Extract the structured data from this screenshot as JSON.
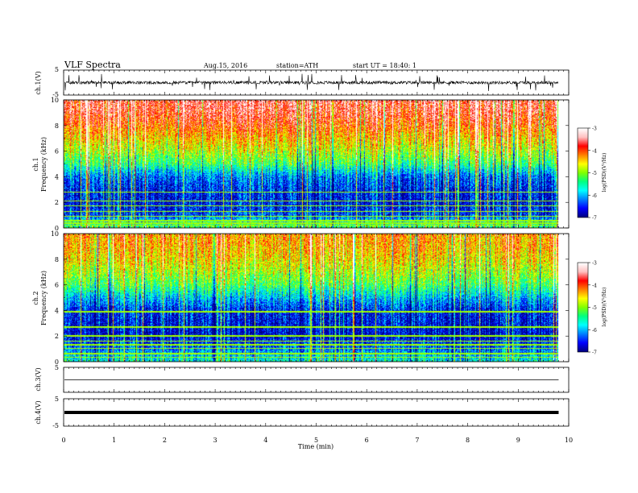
{
  "header": {
    "title": "VLF  Spectra",
    "date": "Aug.15, 2016",
    "station": "station=ATH",
    "start_ut": "start  UT  =    18:40: 1"
  },
  "chart_data": [
    {
      "type": "line",
      "id": "ch1-waveform",
      "ylabel": "ch.1(V)",
      "ylim": [
        -5,
        5
      ],
      "y_ticks": [
        "5",
        "-5"
      ],
      "description_values": {
        "baseline": 0,
        "typical_amplitude": 1,
        "spike_max": 3.5,
        "x_end_min": 9.8
      }
    },
    {
      "type": "heatmap",
      "id": "ch1-spectrogram",
      "ylabel": "ch.1\nFrequency  (kHz)",
      "ylabel_line1": "ch.1",
      "ylabel_line2": "Frequency  (kHz)",
      "ylim": [
        0,
        10
      ],
      "y_ticks": [
        "0",
        "2",
        "4",
        "6",
        "8",
        "10"
      ],
      "xlim": [
        0,
        10
      ],
      "colorbar": {
        "label": "log(PSD)(V²/Hz)",
        "range": [
          -7,
          -3
        ],
        "ticks": [
          "-3",
          "-4",
          "-5",
          "-6",
          "-7"
        ]
      },
      "psd_profile_log": [
        [
          0,
          -5.2
        ],
        [
          1,
          -6.4
        ],
        [
          2,
          -6.6
        ],
        [
          3,
          -6.5
        ],
        [
          4,
          -6.2
        ],
        [
          5,
          -5.3
        ],
        [
          6,
          -4.8
        ],
        [
          7,
          -4.4
        ],
        [
          8,
          -4.0
        ],
        [
          9,
          -3.7
        ],
        [
          10,
          -3.6
        ]
      ],
      "persistent_lines_khz": [
        0.2,
        0.35,
        0.55,
        0.9,
        1.25,
        1.7,
        2.1,
        2.8
      ]
    },
    {
      "type": "heatmap",
      "id": "ch2-spectrogram",
      "ylabel_line1": "ch.2",
      "ylabel_line2": "Frequency  (kHz)",
      "ylim": [
        0,
        10
      ],
      "y_ticks": [
        "0",
        "2",
        "4",
        "6",
        "8",
        "10"
      ],
      "xlim": [
        0,
        10
      ],
      "colorbar": {
        "label": "log(PSD)(V²/Hz)",
        "range": [
          -7,
          -3
        ],
        "ticks": [
          "-3",
          "-4",
          "-5",
          "-6",
          "-7"
        ]
      },
      "psd_profile_log": [
        [
          0,
          -5.6
        ],
        [
          1,
          -6.2
        ],
        [
          2,
          -6.7
        ],
        [
          3,
          -6.6
        ],
        [
          4,
          -6.5
        ],
        [
          5,
          -5.9
        ],
        [
          6,
          -5.2
        ],
        [
          7,
          -4.8
        ],
        [
          8,
          -4.5
        ],
        [
          9,
          -4.3
        ],
        [
          10,
          -4.2
        ]
      ],
      "persistent_lines_khz": [
        0.3,
        0.6,
        1.0,
        1.3,
        1.6,
        2.0,
        2.7,
        3.9
      ]
    },
    {
      "type": "line",
      "id": "ch3-waveform",
      "ylabel": "ch.3(V)",
      "ylim": [
        -5,
        5
      ],
      "y_ticks": [
        "5"
      ],
      "description_values": {
        "baseline": 0
      }
    },
    {
      "type": "line",
      "id": "ch4-waveform",
      "ylabel": "ch.4(V)",
      "ylim": [
        -5,
        5
      ],
      "y_ticks": [
        "5",
        "-5"
      ],
      "description_values": {
        "baseline": 0
      }
    }
  ],
  "xaxis": {
    "label": "Time  (min)",
    "xlim": [
      0,
      10
    ],
    "ticks": [
      "0",
      "1",
      "2",
      "3",
      "4",
      "5",
      "6",
      "7",
      "8",
      "9",
      "10"
    ],
    "data_end": 9.8
  },
  "colors": {
    "axis": "#000000",
    "colormap": [
      "#000080",
      "#0000ff",
      "#0080ff",
      "#00ffff",
      "#00ff80",
      "#80ff00",
      "#ffff00",
      "#ff8000",
      "#ff0000",
      "#ffc0c0",
      "#ffffff"
    ]
  }
}
